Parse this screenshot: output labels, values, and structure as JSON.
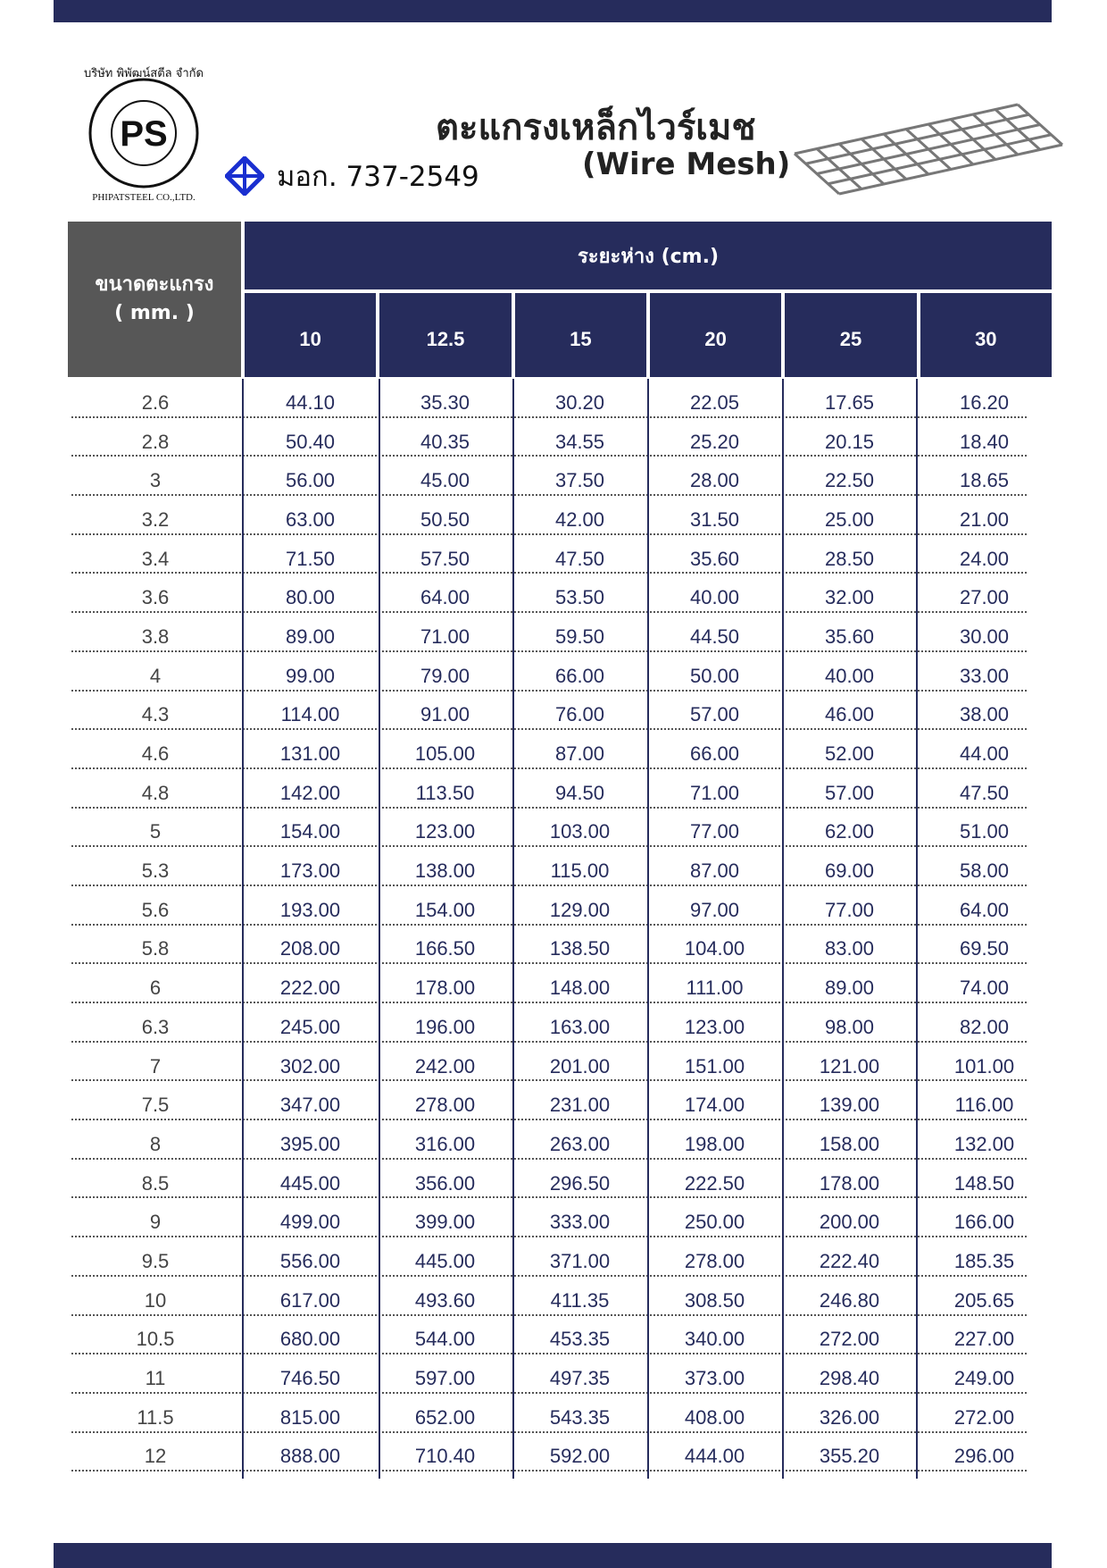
{
  "company": {
    "logo_text": "PS",
    "logo_thai": "บริษัท พิพัฒน์สตีล จำกัด",
    "logo_english": "PHIPATSTEEL CO.,LTD."
  },
  "standard": {
    "icon": "tis-certification-icon",
    "label": "มอก. 737-2549"
  },
  "title": "ตะแกรงเหล็กไวร์เมช",
  "subtitle": "(Wire Mesh)",
  "colors": {
    "primary": "#262c5c",
    "header_gray": "#575757"
  },
  "table": {
    "size_header": "ขนาดตะแกรง",
    "size_unit": "( mm. )",
    "spacing_header": "ระยะห่าง  (cm.)",
    "columns": [
      "10",
      "12.5",
      "15",
      "20",
      "25",
      "30"
    ],
    "rows": [
      [
        "2.6",
        "44.10",
        "35.30",
        "30.20",
        "22.05",
        "17.65",
        "16.20"
      ],
      [
        "2.8",
        "50.40",
        "40.35",
        "34.55",
        "25.20",
        "20.15",
        "18.40"
      ],
      [
        "3",
        "56.00",
        "45.00",
        "37.50",
        "28.00",
        "22.50",
        "18.65"
      ],
      [
        "3.2",
        "63.00",
        "50.50",
        "42.00",
        "31.50",
        "25.00",
        "21.00"
      ],
      [
        "3.4",
        "71.50",
        "57.50",
        "47.50",
        "35.60",
        "28.50",
        "24.00"
      ],
      [
        "3.6",
        "80.00",
        "64.00",
        "53.50",
        "40.00",
        "32.00",
        "27.00"
      ],
      [
        "3.8",
        "89.00",
        "71.00",
        "59.50",
        "44.50",
        "35.60",
        "30.00"
      ],
      [
        "4",
        "99.00",
        "79.00",
        "66.00",
        "50.00",
        "40.00",
        "33.00"
      ],
      [
        "4.3",
        "114.00",
        "91.00",
        "76.00",
        "57.00",
        "46.00",
        "38.00"
      ],
      [
        "4.6",
        "131.00",
        "105.00",
        "87.00",
        "66.00",
        "52.00",
        "44.00"
      ],
      [
        "4.8",
        "142.00",
        "113.50",
        "94.50",
        "71.00",
        "57.00",
        "47.50"
      ],
      [
        "5",
        "154.00",
        "123.00",
        "103.00",
        "77.00",
        "62.00",
        "51.00"
      ],
      [
        "5.3",
        "173.00",
        "138.00",
        "115.00",
        "87.00",
        "69.00",
        "58.00"
      ],
      [
        "5.6",
        "193.00",
        "154.00",
        "129.00",
        "97.00",
        "77.00",
        "64.00"
      ],
      [
        "5.8",
        "208.00",
        "166.50",
        "138.50",
        "104.00",
        "83.00",
        "69.50"
      ],
      [
        "6",
        "222.00",
        "178.00",
        "148.00",
        "111.00",
        "89.00",
        "74.00"
      ],
      [
        "6.3",
        "245.00",
        "196.00",
        "163.00",
        "123.00",
        "98.00",
        "82.00"
      ],
      [
        "7",
        "302.00",
        "242.00",
        "201.00",
        "151.00",
        "121.00",
        "101.00"
      ],
      [
        "7.5",
        "347.00",
        "278.00",
        "231.00",
        "174.00",
        "139.00",
        "116.00"
      ],
      [
        "8",
        "395.00",
        "316.00",
        "263.00",
        "198.00",
        "158.00",
        "132.00"
      ],
      [
        "8.5",
        "445.00",
        "356.00",
        "296.50",
        "222.50",
        "178.00",
        "148.50"
      ],
      [
        "9",
        "499.00",
        "399.00",
        "333.00",
        "250.00",
        "200.00",
        "166.00"
      ],
      [
        "9.5",
        "556.00",
        "445.00",
        "371.00",
        "278.00",
        "222.40",
        "185.35"
      ],
      [
        "10",
        "617.00",
        "493.60",
        "411.35",
        "308.50",
        "246.80",
        "205.65"
      ],
      [
        "10.5",
        "680.00",
        "544.00",
        "453.35",
        "340.00",
        "272.00",
        "227.00"
      ],
      [
        "11",
        "746.50",
        "597.00",
        "497.35",
        "373.00",
        "298.40",
        "249.00"
      ],
      [
        "11.5",
        "815.00",
        "652.00",
        "543.35",
        "408.00",
        "326.00",
        "272.00"
      ],
      [
        "12",
        "888.00",
        "710.40",
        "592.00",
        "444.00",
        "355.20",
        "296.00"
      ]
    ]
  }
}
